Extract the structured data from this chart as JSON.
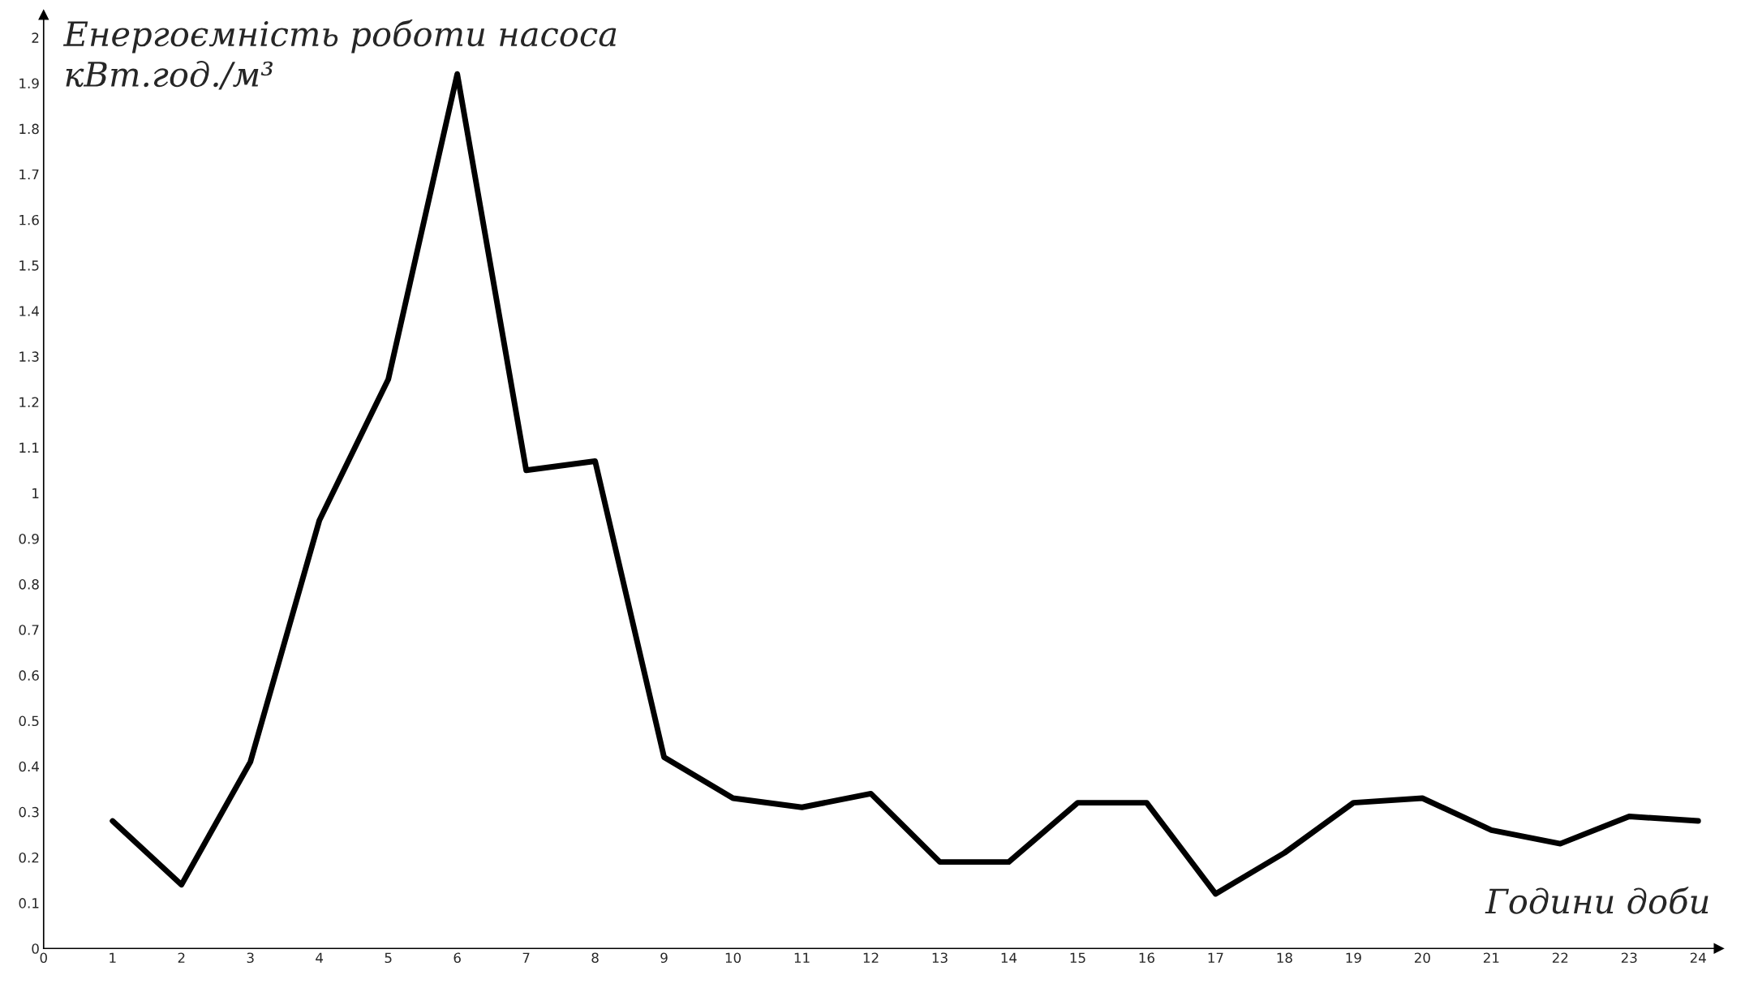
{
  "chart_data": {
    "type": "line",
    "ylabel": "Енергоємність роботи насоса\nкВт.год./м³",
    "xlabel": "Години доби",
    "x": [
      1,
      2,
      3,
      4,
      5,
      6,
      7,
      8,
      9,
      10,
      11,
      12,
      13,
      14,
      15,
      16,
      17,
      18,
      19,
      20,
      21,
      22,
      23,
      24
    ],
    "series": [
      {
        "color": "#000000",
        "values": [
          0.28,
          0.14,
          0.41,
          0.94,
          1.25,
          1.92,
          1.05,
          1.07,
          0.42,
          0.33,
          0.31,
          0.34,
          0.19,
          0.19,
          0.32,
          0.32,
          0.12,
          0.21,
          0.32,
          0.33,
          0.26,
          0.23,
          0.29,
          0.28
        ]
      }
    ],
    "xlim": [
      0,
      24.3
    ],
    "ylim": [
      0,
      2.05
    ],
    "xticks": [
      0,
      1,
      2,
      3,
      4,
      5,
      6,
      7,
      8,
      9,
      10,
      11,
      12,
      13,
      14,
      15,
      16,
      17,
      18,
      19,
      20,
      21,
      22,
      23,
      24
    ],
    "yticks": [
      0,
      0.1,
      0.2,
      0.3,
      0.4,
      0.5,
      0.6,
      0.7,
      0.8,
      0.9,
      1,
      1.1,
      1.2,
      1.3,
      1.4,
      1.5,
      1.6,
      1.7,
      1.8,
      1.9,
      2
    ],
    "grid": false,
    "marker": "none",
    "line_style": "solid"
  }
}
